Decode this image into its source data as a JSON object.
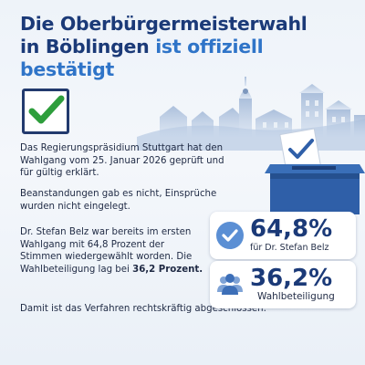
{
  "headline": {
    "line1": "Die Oberbürgermeisterwahl",
    "line2_plain": "in Böblingen ",
    "line2_accent": "ist offiziell bestätigt"
  },
  "colors": {
    "brand_dark": "#1b3a78",
    "accent": "#2f74c8",
    "check_green": "#2e9e3c"
  },
  "icons": {
    "checkbox": "green-checkmark-icon",
    "ballot": "ballot-box-icon",
    "stat1": "check-circle-icon",
    "stat2": "people-icon"
  },
  "paragraphs": {
    "p1": "Das Regierungspräsidium Stuttgart hat den Wahlgang vom 25. Januar 2026 geprüft und für gültig erklärt.",
    "p2": "Beanstandungen gab es nicht, Einsprüche wurden nicht eingelegt.",
    "p3_text": "Dr. Stefan Belz war bereits im ersten Wahlgang mit 64,8 Prozent der Stimmen wiedergewählt worden. Die Wahlbeteiligung lag bei ",
    "p3_strong": "36,2 Prozent.",
    "p4": "Damit ist das Verfahren rechtskräftig abgeschlossen."
  },
  "stats": [
    {
      "value": "64,8%",
      "label": "für Dr. Stefan Belz"
    },
    {
      "value": "36,2%",
      "label": "Wahlbeteiligung"
    }
  ]
}
